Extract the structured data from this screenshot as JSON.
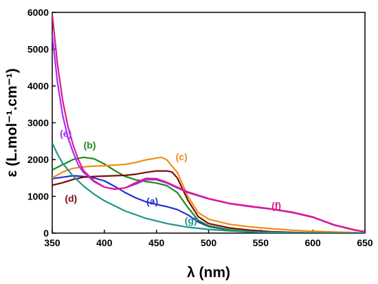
{
  "chart_data": {
    "type": "line",
    "title": "",
    "xlabel": "λ (nm)",
    "ylabel": "ε (L.mol⁻¹.cm⁻¹)",
    "xlim": [
      350,
      650
    ],
    "ylim": [
      0,
      6000
    ],
    "xticks": [
      350,
      400,
      450,
      500,
      550,
      600,
      650
    ],
    "yticks": [
      0,
      1000,
      2000,
      3000,
      4000,
      5000,
      6000
    ],
    "grid": false,
    "legend": "none",
    "series": [
      {
        "name": "(a)",
        "color": "#1f2fd6",
        "x": [
          350,
          360,
          370,
          380,
          390,
          400,
          410,
          420,
          430,
          440,
          450,
          460,
          470,
          480,
          490,
          500,
          520,
          540,
          560,
          580,
          600,
          620,
          650
        ],
        "y": [
          1480,
          1520,
          1560,
          1540,
          1500,
          1420,
          1270,
          1100,
          960,
          850,
          780,
          720,
          640,
          500,
          300,
          180,
          80,
          30,
          10,
          5,
          0,
          0,
          0
        ]
      },
      {
        "name": "(b)",
        "color": "#1a8a1a",
        "x": [
          350,
          360,
          370,
          380,
          390,
          400,
          410,
          420,
          430,
          440,
          450,
          460,
          470,
          480,
          490,
          500,
          520,
          540,
          560,
          580,
          600,
          620,
          650
        ],
        "y": [
          1720,
          1860,
          2000,
          2060,
          2020,
          1880,
          1700,
          1540,
          1450,
          1400,
          1360,
          1290,
          1100,
          700,
          350,
          200,
          90,
          40,
          15,
          5,
          0,
          0,
          0
        ]
      },
      {
        "name": "(c)",
        "color": "#f28c14",
        "x": [
          350,
          360,
          370,
          380,
          390,
          400,
          410,
          420,
          430,
          440,
          450,
          455,
          460,
          470,
          480,
          490,
          500,
          520,
          540,
          560,
          580,
          600,
          620,
          650
        ],
        "y": [
          1500,
          1660,
          1760,
          1800,
          1820,
          1830,
          1850,
          1870,
          1920,
          1990,
          2040,
          2060,
          1990,
          1650,
          1000,
          560,
          380,
          240,
          170,
          120,
          80,
          50,
          30,
          10
        ]
      },
      {
        "name": "(d)",
        "color": "#7a0a0a",
        "x": [
          350,
          360,
          370,
          380,
          390,
          400,
          410,
          420,
          430,
          440,
          450,
          460,
          465,
          470,
          480,
          490,
          500,
          520,
          540,
          560,
          580,
          600,
          620,
          650
        ],
        "y": [
          1300,
          1370,
          1460,
          1520,
          1540,
          1550,
          1560,
          1570,
          1600,
          1650,
          1690,
          1690,
          1660,
          1500,
          900,
          450,
          260,
          140,
          80,
          40,
          20,
          10,
          0,
          0
        ]
      },
      {
        "name": "(e)",
        "color": "#9b30ff",
        "x": [
          350,
          355,
          360,
          365,
          370,
          375,
          380,
          390,
          400,
          410,
          420,
          430,
          440,
          450,
          460,
          470,
          480,
          500,
          520,
          540,
          560,
          580,
          600,
          620,
          640,
          650
        ],
        "y": [
          5400,
          4100,
          3200,
          2600,
          2200,
          1850,
          1650,
          1400,
          1250,
          1200,
          1230,
          1330,
          1450,
          1450,
          1360,
          1230,
          1100,
          930,
          800,
          720,
          650,
          560,
          430,
          220,
          80,
          40
        ]
      },
      {
        "name": "(f)",
        "color": "#e0188a",
        "x": [
          350,
          355,
          360,
          365,
          370,
          375,
          380,
          390,
          400,
          410,
          420,
          430,
          440,
          450,
          460,
          470,
          480,
          500,
          520,
          540,
          560,
          580,
          600,
          620,
          640,
          650
        ],
        "y": [
          5950,
          4600,
          3600,
          2900,
          2400,
          2000,
          1700,
          1420,
          1250,
          1190,
          1230,
          1370,
          1490,
          1480,
          1380,
          1250,
          1120,
          940,
          810,
          730,
          660,
          570,
          440,
          230,
          90,
          40
        ]
      },
      {
        "name": "(g)",
        "color": "#20948a",
        "x": [
          350,
          355,
          360,
          370,
          380,
          390,
          400,
          420,
          440,
          460,
          480,
          500,
          520,
          540,
          560,
          580,
          600,
          620,
          650
        ],
        "y": [
          2450,
          2150,
          1900,
          1550,
          1280,
          1060,
          880,
          600,
          400,
          260,
          160,
          100,
          60,
          35,
          20,
          10,
          5,
          0,
          0
        ]
      }
    ],
    "annotations": [
      {
        "text": "(a)",
        "x": 446,
        "y": 780
      },
      {
        "text": "(b)",
        "x": 386,
        "y": 2300
      },
      {
        "text": "(c)",
        "x": 474,
        "y": 1980
      },
      {
        "text": "(d)",
        "x": 368,
        "y": 850
      },
      {
        "text": "(e)",
        "x": 363,
        "y": 2620
      },
      {
        "text": "(f)",
        "x": 565,
        "y": 650
      },
      {
        "text": "(g)",
        "x": 483,
        "y": 250
      }
    ]
  }
}
